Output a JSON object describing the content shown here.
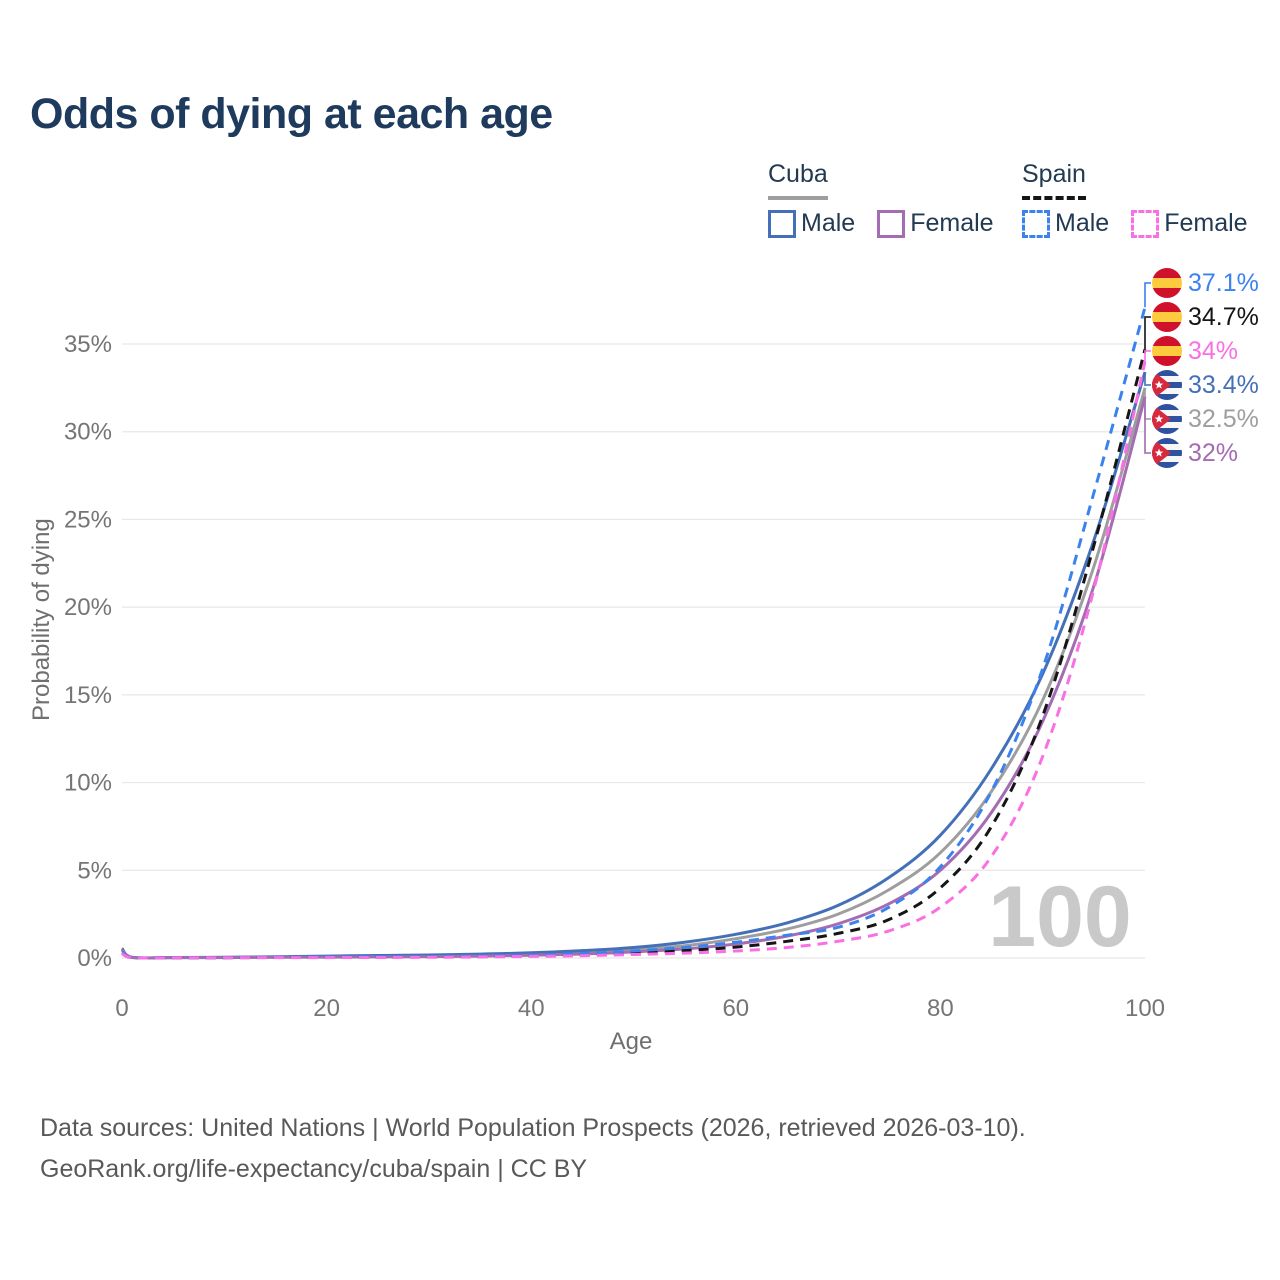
{
  "title": "Odds of dying at each age",
  "legend": {
    "groups": [
      {
        "id": "cuba",
        "label": "Cuba",
        "line_style": "solid",
        "line_color": "#9e9e9e",
        "items": [
          {
            "series": "cuba-male",
            "label": "Male"
          },
          {
            "series": "cuba-female",
            "label": "Female"
          }
        ]
      },
      {
        "id": "spain",
        "label": "Spain",
        "line_style": "dashed",
        "line_color": "#151515",
        "items": [
          {
            "series": "spain-male",
            "label": "Male"
          },
          {
            "series": "spain-female",
            "label": "Female"
          }
        ]
      }
    ]
  },
  "axes": {
    "x_title": "Age",
    "y_title": "Probability of dying"
  },
  "watermark": "100",
  "footer": {
    "line1": "Data sources: United Nations | World Population Prospects (2026, retrieved 2026-03-10).",
    "line2": "GeoRank.org/life-expectancy/cuba/spain | CC BY"
  },
  "flag_colors": {
    "spain_red": "#d0112b",
    "spain_yellow": "#fecb3e",
    "cuba_blue": "#2e52a0",
    "cuba_red": "#d6293e",
    "white": "#f7f7f7"
  },
  "chart_data": {
    "type": "line",
    "title": "Odds of dying at each age",
    "xlabel": "Age",
    "ylabel": "Probability of dying",
    "xlim": [
      0,
      100
    ],
    "ylim": [
      0,
      37.5
    ],
    "x_ticks": [
      0,
      20,
      40,
      60,
      80,
      100
    ],
    "y_ticks": [
      0,
      5,
      10,
      15,
      20,
      25,
      30,
      35
    ],
    "y_tick_suffix": "%",
    "grid": "horizontal-only",
    "legend_position": "top-right",
    "watermark": "100",
    "x": [
      0,
      1,
      5,
      10,
      15,
      20,
      25,
      30,
      35,
      40,
      45,
      50,
      55,
      60,
      65,
      70,
      75,
      80,
      85,
      90,
      95,
      100
    ],
    "series": [
      {
        "id": "cuba-all",
        "name": "Cuba — All",
        "country": "cuba",
        "color": "#9e9e9e",
        "dash": false,
        "end_label": "32.5%",
        "end_value": 32.5,
        "values": [
          0.5,
          0.035,
          0.025,
          0.03,
          0.05,
          0.08,
          0.1,
          0.12,
          0.16,
          0.22,
          0.32,
          0.47,
          0.7,
          1.1,
          1.65,
          2.5,
          3.9,
          6.0,
          9.5,
          14.7,
          22.3,
          32.5
        ]
      },
      {
        "id": "cuba-male",
        "name": "Cuba — Male",
        "country": "cuba",
        "color": "#4470b8",
        "dash": false,
        "end_label": "33.4%",
        "end_value": 33.4,
        "values": [
          0.55,
          0.04,
          0.03,
          0.04,
          0.07,
          0.11,
          0.14,
          0.17,
          0.22,
          0.3,
          0.42,
          0.6,
          0.9,
          1.35,
          2.0,
          3.0,
          4.6,
          7.0,
          10.8,
          16.2,
          23.8,
          33.4
        ]
      },
      {
        "id": "cuba-female",
        "name": "Cuba — Female",
        "country": "cuba",
        "color": "#a46cb2",
        "dash": false,
        "end_label": "32%",
        "end_value": 32.0,
        "values": [
          0.45,
          0.03,
          0.02,
          0.025,
          0.04,
          0.05,
          0.06,
          0.08,
          0.11,
          0.16,
          0.23,
          0.35,
          0.52,
          0.8,
          1.25,
          1.95,
          3.1,
          5.0,
          8.3,
          13.5,
          21.2,
          32.0
        ]
      },
      {
        "id": "spain-all",
        "name": "Spain — All",
        "country": "spain",
        "color": "#151515",
        "dash": true,
        "end_label": "34.7%",
        "end_value": 34.7,
        "values": [
          0.28,
          0.025,
          0.015,
          0.015,
          0.03,
          0.04,
          0.05,
          0.06,
          0.08,
          0.12,
          0.18,
          0.28,
          0.42,
          0.62,
          0.95,
          1.4,
          2.2,
          4.0,
          7.5,
          13.8,
          23.5,
          34.7
        ]
      },
      {
        "id": "spain-male",
        "name": "Spain — Male",
        "country": "spain",
        "color": "#3b82ef",
        "dash": true,
        "end_label": "37.1%",
        "end_value": 37.1,
        "values": [
          0.3,
          0.03,
          0.02,
          0.02,
          0.04,
          0.06,
          0.07,
          0.08,
          0.1,
          0.15,
          0.25,
          0.4,
          0.6,
          0.9,
          1.3,
          1.75,
          2.9,
          5.2,
          9.5,
          16.5,
          26.5,
          37.1
        ]
      },
      {
        "id": "spain-female",
        "name": "Spain — Female",
        "country": "spain",
        "color": "#fa6fe4",
        "dash": true,
        "end_label": "34%",
        "end_value": 34.0,
        "values": [
          0.25,
          0.02,
          0.012,
          0.012,
          0.02,
          0.025,
          0.03,
          0.04,
          0.06,
          0.09,
          0.13,
          0.2,
          0.28,
          0.4,
          0.6,
          0.95,
          1.55,
          2.9,
          5.8,
          11.5,
          21.0,
          34.0
        ]
      }
    ]
  }
}
